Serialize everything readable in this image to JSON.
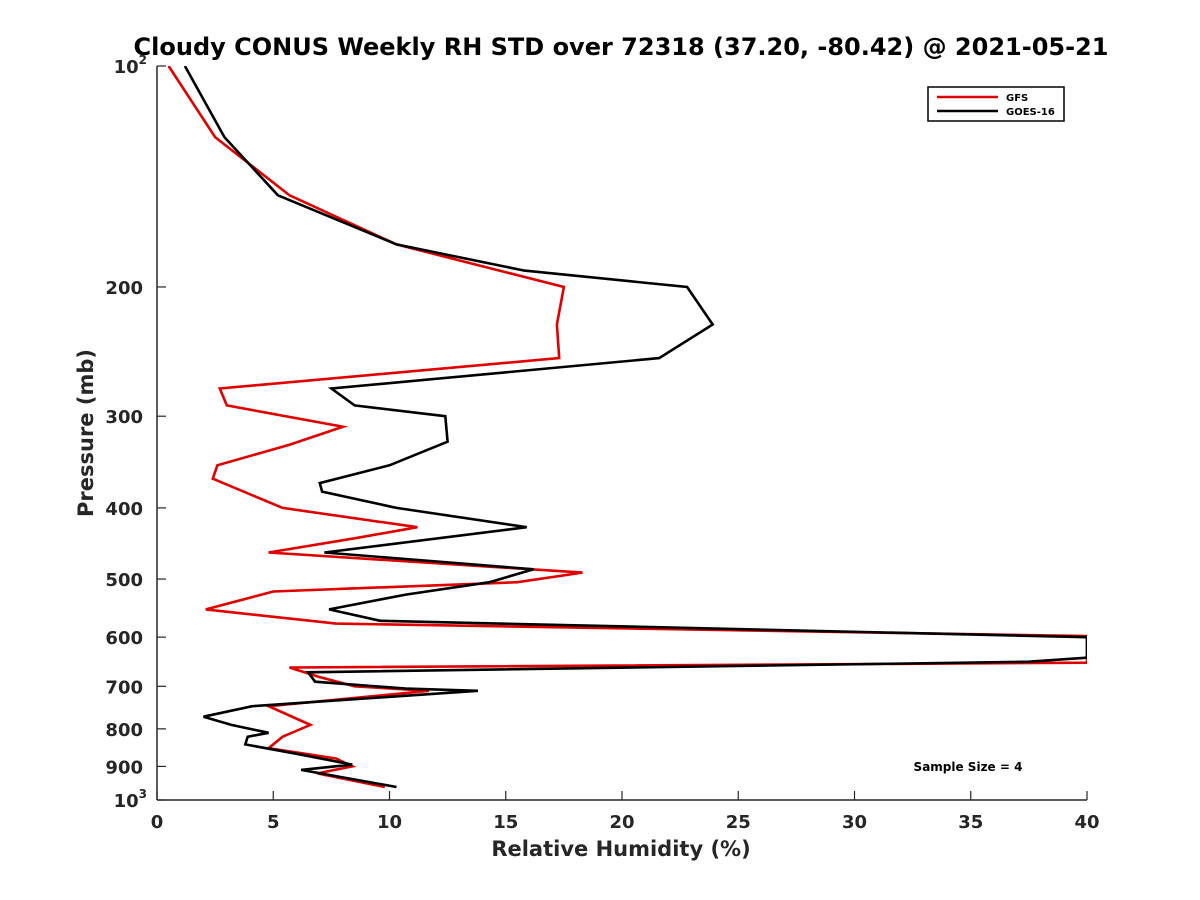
{
  "chart_data": {
    "type": "line",
    "title": "Cloudy CONUS Weekly RH STD over 72318 (37.20, -80.42) @ 2021-05-21",
    "xlabel": "Relative Humidity (%)",
    "ylabel": "Pressure (mb)",
    "xlim": [
      0,
      40
    ],
    "ylim": [
      100,
      1000
    ],
    "yscale": "log",
    "y_reversed": true,
    "x_ticks": [
      0,
      5,
      10,
      15,
      20,
      25,
      30,
      35,
      40
    ],
    "x_tick_labels": [
      "0",
      "5",
      "10",
      "15",
      "20",
      "25",
      "30",
      "35",
      "40"
    ],
    "y_ticks": [
      {
        "value": 100,
        "base": "10",
        "exp": "2"
      },
      {
        "value": 200,
        "label": "200"
      },
      {
        "value": 300,
        "label": "300"
      },
      {
        "value": 400,
        "label": "400"
      },
      {
        "value": 500,
        "label": "500"
      },
      {
        "value": 600,
        "label": "600"
      },
      {
        "value": 700,
        "label": "700"
      },
      {
        "value": 800,
        "label": "800"
      },
      {
        "value": 900,
        "label": "900"
      },
      {
        "value": 1000,
        "base": "10",
        "exp": "3"
      }
    ],
    "legend_placement": "top-right",
    "annotation": "Sample Size = 4",
    "series": [
      {
        "name": "GFS",
        "color": "#e00000",
        "points": [
          [
            0.5,
            100
          ],
          [
            2.5,
            125
          ],
          [
            5.7,
            150
          ],
          [
            10.3,
            175
          ],
          [
            17.5,
            200
          ],
          [
            17.2,
            225
          ],
          [
            17.3,
            250
          ],
          [
            2.7,
            275
          ],
          [
            3,
            290
          ],
          [
            8,
            310
          ],
          [
            5.7,
            328
          ],
          [
            2.6,
            350
          ],
          [
            2.4,
            365
          ],
          [
            5.4,
            400
          ],
          [
            11.2,
            425
          ],
          [
            8.5,
            440
          ],
          [
            4.8,
            460
          ],
          [
            18.3,
            490
          ],
          [
            15.5,
            505
          ],
          [
            5,
            520
          ],
          [
            2.1,
            550
          ],
          [
            7.7,
            575
          ],
          [
            40,
            598
          ],
          [
            40,
            650
          ],
          [
            5.7,
            660
          ],
          [
            7,
            680
          ],
          [
            8.5,
            700
          ],
          [
            11.7,
            710
          ],
          [
            4.8,
            745
          ],
          [
            6.6,
            790
          ],
          [
            5.4,
            820
          ],
          [
            4.8,
            850
          ],
          [
            7.7,
            878
          ],
          [
            8.4,
            900
          ],
          [
            6.9,
            920
          ],
          [
            8,
            935
          ],
          [
            9.8,
            960
          ]
        ]
      },
      {
        "name": "GOES-16",
        "color": "#000000",
        "points": [
          [
            1.2,
            100
          ],
          [
            2.9,
            125
          ],
          [
            5.2,
            150
          ],
          [
            10.3,
            175
          ],
          [
            15.8,
            190
          ],
          [
            22.8,
            200
          ],
          [
            23.9,
            225
          ],
          [
            21.6,
            250
          ],
          [
            7.5,
            275
          ],
          [
            8.5,
            290
          ],
          [
            12.4,
            300
          ],
          [
            12.5,
            325
          ],
          [
            10,
            350
          ],
          [
            7,
            370
          ],
          [
            7.1,
            380
          ],
          [
            10.3,
            400
          ],
          [
            15.9,
            425
          ],
          [
            7.2,
            460
          ],
          [
            16.2,
            485
          ],
          [
            14.3,
            505
          ],
          [
            10.7,
            525
          ],
          [
            7.4,
            550
          ],
          [
            9.6,
            570
          ],
          [
            40,
            600
          ],
          [
            40,
            640
          ],
          [
            37.5,
            648
          ],
          [
            6.5,
            670
          ],
          [
            6.8,
            690
          ],
          [
            10.7,
            705
          ],
          [
            13.8,
            710
          ],
          [
            4.1,
            745
          ],
          [
            2,
            770
          ],
          [
            3.2,
            790
          ],
          [
            4.8,
            810
          ],
          [
            3.9,
            820
          ],
          [
            3.8,
            840
          ],
          [
            6,
            865
          ],
          [
            8.4,
            895
          ],
          [
            6.2,
            910
          ],
          [
            10.3,
            960
          ]
        ]
      }
    ]
  }
}
